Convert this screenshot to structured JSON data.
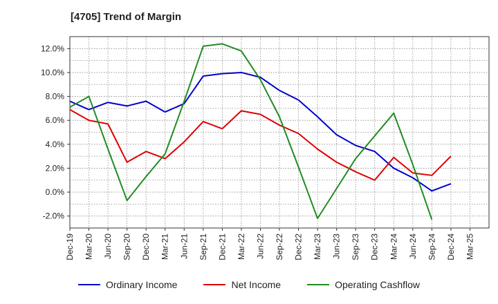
{
  "chart_data": {
    "type": "line",
    "title": "[4705]  Trend of Margin",
    "xlabel": "",
    "ylabel": "",
    "categories": [
      "Dec-19",
      "Mar-20",
      "Jun-20",
      "Sep-20",
      "Dec-20",
      "Mar-21",
      "Jun-21",
      "Sep-21",
      "Dec-21",
      "Mar-22",
      "Jun-22",
      "Sep-22",
      "Dec-22",
      "Mar-23",
      "Jun-23",
      "Sep-23",
      "Dec-23",
      "Mar-24",
      "Jun-24",
      "Sep-24",
      "Dec-24",
      "Mar-25"
    ],
    "ylim": [
      -3.0,
      13.0
    ],
    "yticks": [
      -2.0,
      0.0,
      2.0,
      4.0,
      6.0,
      8.0,
      10.0,
      12.0
    ],
    "ytick_labels": [
      "-2.0%",
      "0.0%",
      "2.0%",
      "4.0%",
      "6.0%",
      "8.0%",
      "10.0%",
      "12.0%"
    ],
    "grid": true,
    "legend_position": "bottom",
    "series": [
      {
        "name": "Ordinary Income",
        "color": "#0000cc",
        "values": [
          7.6,
          6.9,
          7.5,
          7.2,
          7.6,
          6.7,
          7.4,
          9.7,
          9.9,
          10.0,
          9.6,
          8.5,
          7.7,
          6.3,
          4.8,
          3.9,
          3.4,
          2.0,
          1.2,
          0.1,
          0.7,
          null
        ]
      },
      {
        "name": "Net Income",
        "color": "#dd0000",
        "values": [
          6.9,
          6.0,
          5.7,
          2.5,
          3.4,
          2.8,
          4.2,
          5.9,
          5.3,
          6.8,
          6.5,
          5.6,
          4.9,
          3.6,
          2.5,
          1.7,
          1.0,
          2.9,
          1.6,
          1.4,
          3.0,
          null
        ]
      },
      {
        "name": "Operating Cashflow",
        "color": "#228b22",
        "values": [
          7.1,
          8.0,
          3.6,
          -0.7,
          1.3,
          3.2,
          7.6,
          12.2,
          12.4,
          11.8,
          9.4,
          6.3,
          2.1,
          -2.2,
          0.3,
          2.8,
          4.7,
          6.6,
          2.3,
          -2.3,
          null,
          null
        ]
      }
    ]
  }
}
